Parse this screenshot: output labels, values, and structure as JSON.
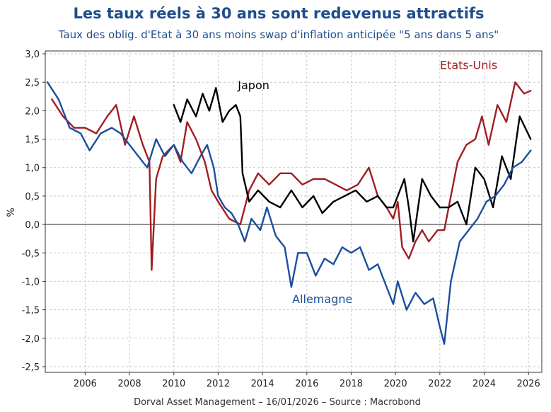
{
  "chart_data": {
    "type": "line",
    "title": "Les taux réels à 30 ans sont redevenus attractifs",
    "subtitle": "Taux des oblig. d'Etat à 30 ans moins swap d'inflation anticipée \"5 ans dans 5 ans\"",
    "ylabel": "%",
    "xlabel": "",
    "xlim": [
      2004.2,
      2026.6
    ],
    "ylim": [
      -2.6,
      3.05
    ],
    "yticks": [
      3.0,
      2.5,
      2.0,
      1.5,
      1.0,
      0.5,
      0.0,
      -0.5,
      -1.0,
      -1.5,
      -2.0,
      -2.5
    ],
    "ytick_labels": [
      "3,0",
      "2,5",
      "2,0",
      "1,5",
      "1,0",
      "0,5",
      "0,0",
      "-0,5",
      "-1,0",
      "-1,5",
      "-2,0",
      "-2,5"
    ],
    "xticks": [
      2006,
      2008,
      2010,
      2012,
      2014,
      2016,
      2018,
      2020,
      2022,
      2024,
      2026
    ],
    "xtick_labels": [
      "2006",
      "2008",
      "2010",
      "2012",
      "2014",
      "2016",
      "2018",
      "2020",
      "2022",
      "2024",
      "2026"
    ],
    "grid": true,
    "series": [
      {
        "name": "Etats-Unis",
        "color": "#a01e22",
        "x": [
          2004.5,
          2005.0,
          2005.5,
          2006.0,
          2006.5,
          2007.0,
          2007.4,
          2007.8,
          2008.2,
          2008.6,
          2008.9,
          2009.0,
          2009.2,
          2009.5,
          2010.0,
          2010.3,
          2010.6,
          2011.0,
          2011.4,
          2011.7,
          2012.0,
          2012.5,
          2013.0,
          2013.4,
          2013.8,
          2014.3,
          2014.8,
          2015.3,
          2015.8,
          2016.3,
          2016.8,
          2017.3,
          2017.8,
          2018.3,
          2018.8,
          2019.2,
          2019.6,
          2019.9,
          2020.1,
          2020.3,
          2020.6,
          2020.9,
          2021.2,
          2021.5,
          2021.9,
          2022.2,
          2022.5,
          2022.8,
          2023.2,
          2023.6,
          2023.9,
          2024.2,
          2024.6,
          2025.0,
          2025.4,
          2025.8,
          2026.1
        ],
        "values": [
          2.2,
          1.9,
          1.7,
          1.7,
          1.6,
          1.9,
          2.1,
          1.4,
          1.9,
          1.4,
          1.1,
          -0.8,
          0.8,
          1.2,
          1.4,
          1.1,
          1.8,
          1.5,
          1.1,
          0.6,
          0.4,
          0.1,
          0.0,
          0.6,
          0.9,
          0.7,
          0.9,
          0.9,
          0.7,
          0.8,
          0.8,
          0.7,
          0.6,
          0.7,
          1.0,
          0.5,
          0.3,
          0.1,
          0.4,
          -0.4,
          -0.6,
          -0.3,
          -0.1,
          -0.3,
          -0.1,
          -0.1,
          0.5,
          1.1,
          1.4,
          1.5,
          1.9,
          1.4,
          2.1,
          1.8,
          2.5,
          2.3,
          2.35
        ]
      },
      {
        "name": "Japon",
        "color": "#000000",
        "x": [
          2010.0,
          2010.3,
          2010.6,
          2011.0,
          2011.3,
          2011.6,
          2011.9,
          2012.2,
          2012.5,
          2012.8,
          2013.0,
          2013.1,
          2013.4,
          2013.8,
          2014.3,
          2014.8,
          2015.3,
          2015.8,
          2016.3,
          2016.7,
          2017.2,
          2017.7,
          2018.2,
          2018.7,
          2019.2,
          2019.6,
          2019.9,
          2020.2,
          2020.4,
          2020.6,
          2020.8,
          2021.2,
          2021.6,
          2022.0,
          2022.4,
          2022.8,
          2023.2,
          2023.6,
          2024.0,
          2024.4,
          2024.8,
          2025.2,
          2025.6,
          2026.1
        ],
        "values": [
          2.1,
          1.8,
          2.2,
          1.9,
          2.3,
          2.0,
          2.4,
          1.8,
          2.0,
          2.1,
          1.9,
          0.9,
          0.4,
          0.6,
          0.4,
          0.3,
          0.6,
          0.3,
          0.5,
          0.2,
          0.4,
          0.5,
          0.6,
          0.4,
          0.5,
          0.3,
          0.3,
          0.6,
          0.8,
          0.3,
          -0.3,
          0.8,
          0.5,
          0.3,
          0.3,
          0.4,
          0.0,
          1.0,
          0.8,
          0.3,
          1.2,
          0.8,
          1.9,
          1.5
        ]
      },
      {
        "name": "Allemagne",
        "color": "#1b4f9c",
        "x": [
          2004.3,
          2004.8,
          2005.3,
          2005.8,
          2006.2,
          2006.7,
          2007.2,
          2007.6,
          2008.0,
          2008.4,
          2008.8,
          2009.2,
          2009.6,
          2010.0,
          2010.4,
          2010.8,
          2011.2,
          2011.5,
          2011.8,
          2012.0,
          2012.3,
          2012.6,
          2012.9,
          2013.2,
          2013.5,
          2013.9,
          2014.2,
          2014.6,
          2015.0,
          2015.3,
          2015.6,
          2016.0,
          2016.4,
          2016.8,
          2017.2,
          2017.6,
          2018.0,
          2018.4,
          2018.8,
          2019.2,
          2019.6,
          2019.9,
          2020.1,
          2020.5,
          2020.9,
          2021.3,
          2021.7,
          2022.0,
          2022.2,
          2022.5,
          2022.9,
          2023.3,
          2023.7,
          2024.1,
          2024.5,
          2024.9,
          2025.3,
          2025.7,
          2026.1
        ],
        "values": [
          2.5,
          2.2,
          1.7,
          1.6,
          1.3,
          1.6,
          1.7,
          1.6,
          1.4,
          1.2,
          1.0,
          1.5,
          1.2,
          1.4,
          1.1,
          0.9,
          1.2,
          1.4,
          1.0,
          0.5,
          0.3,
          0.2,
          0.0,
          -0.3,
          0.1,
          -0.1,
          0.3,
          -0.2,
          -0.4,
          -1.1,
          -0.5,
          -0.5,
          -0.9,
          -0.6,
          -0.7,
          -0.4,
          -0.5,
          -0.4,
          -0.8,
          -0.7,
          -1.1,
          -1.4,
          -1.0,
          -1.5,
          -1.2,
          -1.4,
          -1.3,
          -1.8,
          -2.1,
          -1.0,
          -0.3,
          -0.1,
          0.1,
          0.4,
          0.5,
          0.7,
          1.0,
          1.1,
          1.3
        ]
      }
    ],
    "annotations": [
      {
        "text": "Japon",
        "x": 2013.6,
        "y": 2.38,
        "color": "#000000"
      },
      {
        "text": "Etats-Unis",
        "x": 2023.3,
        "y": 2.73,
        "color": "#a01e22"
      },
      {
        "text": "Allemagne",
        "x": 2016.7,
        "y": -1.38,
        "color": "#1b4f9c"
      }
    ]
  },
  "footer": {
    "text": "Dorval Asset Management – 16/01/2026 –   Source : Macrobond"
  }
}
